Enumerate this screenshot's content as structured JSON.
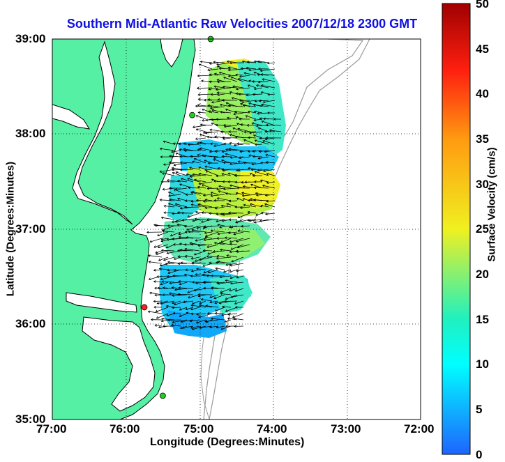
{
  "title": "Southern Mid-Atlantic Raw Velocities 2007/12/18 2300 GMT",
  "x_axis": {
    "label": "Longitude (Degrees:Minutes)",
    "ticks": [
      "77:00",
      "76:00",
      "75:00",
      "74:00",
      "73:00",
      "72:00"
    ]
  },
  "y_axis": {
    "label": "Latitude (Degrees:Minutes)",
    "ticks": [
      "39:00",
      "38:00",
      "37:00",
      "36:00",
      "35:00"
    ]
  },
  "colorbar": {
    "label": "Surface Velocity (cm/s)",
    "ticks": [
      "50",
      "45",
      "40",
      "35",
      "30",
      "25",
      "20",
      "15",
      "10",
      "5",
      "0"
    ],
    "min": 0,
    "max": 50
  },
  "map": {
    "extent": {
      "lon": [
        -77,
        -72
      ],
      "lat": [
        35,
        39
      ]
    },
    "grid": true,
    "land_color": "#55f0a4",
    "water_color": "#ffffff",
    "station_markers": [
      {
        "name": "green",
        "lon": -74.85,
        "lat": 39.0,
        "color": "#22cc22"
      },
      {
        "name": "green",
        "lon": -75.1,
        "lat": 38.2,
        "color": "#22cc22"
      },
      {
        "name": "red",
        "lon": -75.75,
        "lat": 36.18,
        "color": "#ff2222"
      },
      {
        "name": "green",
        "lon": -75.5,
        "lat": 35.25,
        "color": "#22cc22"
      }
    ]
  }
}
